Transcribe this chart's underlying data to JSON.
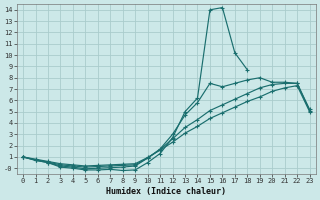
{
  "xlabel": "Humidex (Indice chaleur)",
  "bg_color": "#cce8e8",
  "grid_color": "#aacccc",
  "line_color": "#1a6e6e",
  "xlim": [
    -0.5,
    23.5
  ],
  "ylim": [
    -0.5,
    14.5
  ],
  "xticks": [
    0,
    1,
    2,
    3,
    4,
    5,
    6,
    7,
    8,
    9,
    10,
    11,
    12,
    13,
    14,
    15,
    16,
    17,
    18,
    19,
    20,
    21,
    22,
    23
  ],
  "yticks": [
    0,
    1,
    2,
    3,
    4,
    5,
    6,
    7,
    8,
    9,
    10,
    11,
    12,
    13,
    14
  ],
  "ytick_labels": [
    "-0",
    "1",
    "2",
    "3",
    "4",
    "5",
    "6",
    "7",
    "8",
    "9",
    "10",
    "11",
    "12",
    "13",
    "14"
  ],
  "lines": [
    {
      "x": [
        0,
        1,
        2,
        3,
        4,
        5,
        6,
        7,
        8,
        9,
        10,
        11,
        12,
        13,
        14,
        15,
        16,
        17,
        18
      ],
      "y": [
        1.0,
        0.7,
        0.5,
        0.1,
        0.0,
        -0.15,
        -0.15,
        -0.1,
        -0.2,
        -0.15,
        0.5,
        1.3,
        2.7,
        5.0,
        6.2,
        14.0,
        14.2,
        10.2,
        8.7
      ]
    },
    {
      "x": [
        0,
        1,
        2,
        3,
        4,
        5,
        6,
        7,
        8,
        9,
        10,
        11,
        12,
        13,
        14,
        15,
        16,
        17,
        18,
        19,
        20,
        21,
        22,
        23
      ],
      "y": [
        1.0,
        0.7,
        0.5,
        0.2,
        0.1,
        -0.05,
        0.0,
        0.05,
        0.1,
        0.2,
        0.9,
        1.7,
        3.0,
        4.7,
        5.8,
        7.5,
        7.2,
        7.5,
        7.8,
        8.0,
        7.6,
        7.6,
        7.5,
        5.2
      ]
    },
    {
      "x": [
        0,
        1,
        2,
        3,
        4,
        5,
        6,
        7,
        8,
        9,
        10,
        11,
        12,
        13,
        14,
        15,
        16,
        17,
        18,
        19,
        20,
        21,
        22,
        23
      ],
      "y": [
        1.0,
        0.75,
        0.55,
        0.3,
        0.2,
        0.1,
        0.15,
        0.2,
        0.25,
        0.3,
        0.9,
        1.65,
        2.6,
        3.6,
        4.3,
        5.1,
        5.6,
        6.1,
        6.6,
        7.1,
        7.4,
        7.5,
        7.5,
        5.1
      ]
    },
    {
      "x": [
        0,
        1,
        2,
        3,
        4,
        5,
        6,
        7,
        8,
        9,
        10,
        11,
        12,
        13,
        14,
        15,
        16,
        17,
        18,
        19,
        20,
        21,
        22,
        23
      ],
      "y": [
        1.0,
        0.8,
        0.6,
        0.4,
        0.3,
        0.2,
        0.25,
        0.3,
        0.35,
        0.4,
        0.95,
        1.6,
        2.3,
        3.1,
        3.7,
        4.4,
        4.9,
        5.4,
        5.9,
        6.3,
        6.8,
        7.1,
        7.3,
        5.0
      ]
    }
  ]
}
